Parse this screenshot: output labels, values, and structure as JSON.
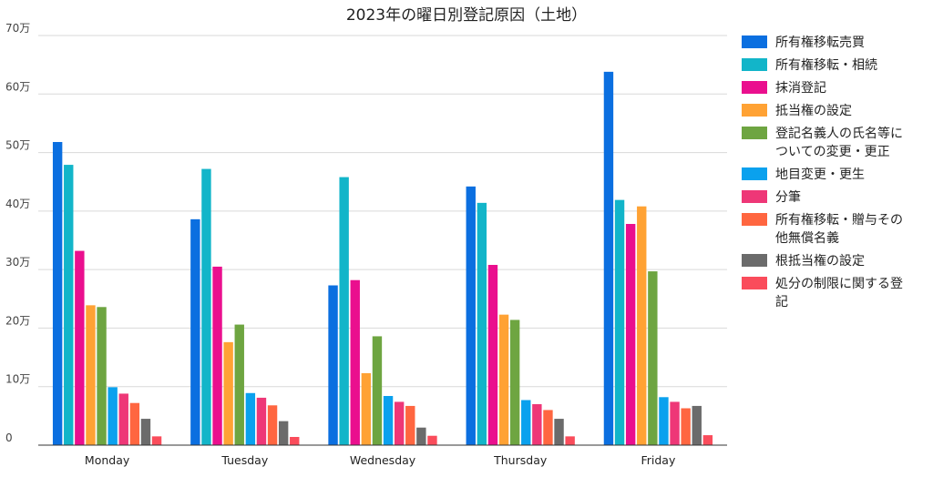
{
  "chart_data": {
    "type": "bar",
    "title": "2023年の曜日別登記原因（土地）",
    "categories": [
      "Monday",
      "Tuesday",
      "Wednesday",
      "Thursday",
      "Friday"
    ],
    "ylim": [
      0,
      700000
    ],
    "yticks": [
      {
        "value": 0,
        "label": "0"
      },
      {
        "value": 100000,
        "label": "10万"
      },
      {
        "value": 200000,
        "label": "20万"
      },
      {
        "value": 300000,
        "label": "30万"
      },
      {
        "value": 400000,
        "label": "40万"
      },
      {
        "value": 500000,
        "label": "50万"
      },
      {
        "value": 600000,
        "label": "60万"
      },
      {
        "value": 700000,
        "label": "70万"
      }
    ],
    "grid": true,
    "legend_position": "right",
    "series": [
      {
        "name": "所有権移転売買",
        "name_lines": [
          "所有権移転売買"
        ],
        "color": "#0b6fe0",
        "values": [
          518000,
          386000,
          273000,
          442000,
          638000
        ]
      },
      {
        "name": "所有権移転・相続",
        "name_lines": [
          "所有権移転・相続"
        ],
        "color": "#12b5c9",
        "values": [
          479000,
          472000,
          458000,
          414000,
          419000
        ]
      },
      {
        "name": "抹消登記",
        "name_lines": [
          "抹消登記"
        ],
        "color": "#ea0f8e",
        "values": [
          332000,
          305000,
          282000,
          308000,
          378000
        ]
      },
      {
        "name": "抵当権の設定",
        "name_lines": [
          "抵当権の設定"
        ],
        "color": "#ffa234",
        "values": [
          239000,
          176000,
          123000,
          223000,
          408000
        ]
      },
      {
        "name": "登記名義人の氏名等についての変更・更正",
        "name_lines": [
          "登記名義人の氏名等に",
          "ついての変更・更正"
        ],
        "color": "#6ea541",
        "values": [
          236000,
          206000,
          186000,
          214000,
          297000
        ]
      },
      {
        "name": "地目変更・更生",
        "name_lines": [
          "地目変更・更生"
        ],
        "color": "#0aa1ee",
        "values": [
          99000,
          89000,
          84000,
          77000,
          82000
        ]
      },
      {
        "name": "分筆",
        "name_lines": [
          "分筆"
        ],
        "color": "#ee3777",
        "values": [
          88000,
          81000,
          74000,
          70000,
          74000
        ]
      },
      {
        "name": "所有権移転・贈与その他無償名義",
        "name_lines": [
          "所有権移転・贈与その",
          "他無償名義"
        ],
        "color": "#ff6640",
        "values": [
          72000,
          68000,
          67000,
          60000,
          63000
        ]
      },
      {
        "name": "根抵当権の設定",
        "name_lines": [
          "根抵当権の設定"
        ],
        "color": "#6b6b6b",
        "values": [
          45000,
          41000,
          30000,
          45000,
          67000
        ]
      },
      {
        "name": "処分の制限に関する登記",
        "name_lines": [
          "処分の制限に関する登",
          "記"
        ],
        "color": "#fa4c5b",
        "values": [
          15000,
          14000,
          16000,
          15000,
          17000
        ]
      }
    ]
  }
}
